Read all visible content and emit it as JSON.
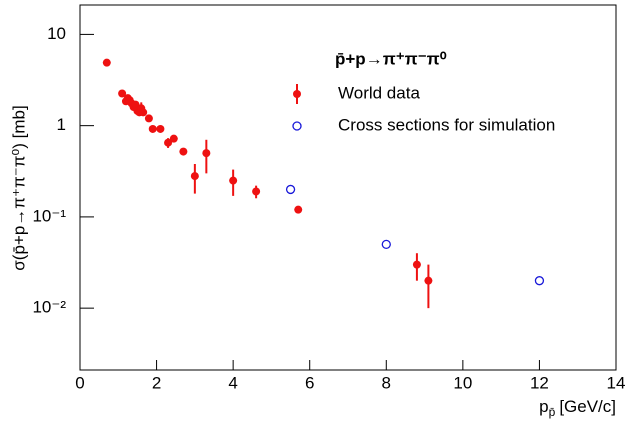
{
  "chart_data": {
    "type": "scatter",
    "title": "p̄+p→π⁺π⁻π⁰",
    "y_label": "σ(p̄+p→π⁺π⁻π⁰) [mb]",
    "x_label": "p",
    "x_label_sub": "p̄",
    "x_label_unit": "[GeV/c]",
    "log_y": true,
    "xlim": [
      0,
      14
    ],
    "xticks": [
      0,
      2,
      4,
      6,
      8,
      10,
      12,
      14
    ],
    "ylim": [
      0.0021,
      21
    ],
    "yticks": [
      {
        "value": 0.01,
        "label": "10⁻²"
      },
      {
        "value": 0.1,
        "label": "10⁻¹"
      },
      1,
      10
    ],
    "series": [
      {
        "name": "World data",
        "color": "#ee1111",
        "marker": "filled",
        "x": [
          0.7,
          1.1,
          1.2,
          1.25,
          1.3,
          1.35,
          1.4,
          1.45,
          1.5,
          1.55,
          1.6,
          1.65,
          1.8,
          1.9,
          2.1,
          2.3,
          2.45,
          2.7,
          3.0,
          3.3,
          4.0,
          4.6,
          5.7,
          8.8,
          9.1
        ],
        "values": [
          4.9,
          2.25,
          1.85,
          2.0,
          1.9,
          1.75,
          1.6,
          1.7,
          1.45,
          1.4,
          1.55,
          1.4,
          1.2,
          0.92,
          0.92,
          0.65,
          0.72,
          0.52,
          0.28,
          0.5,
          0.25,
          0.19,
          0.12,
          0.03,
          0.02
        ],
        "errors": [
          null,
          0.15,
          null,
          0.15,
          null,
          0.15,
          null,
          0.15,
          null,
          null,
          0.25,
          null,
          0.1,
          null,
          null,
          0.08,
          null,
          null,
          0.1,
          0.2,
          0.08,
          0.03,
          null,
          0.01,
          0.01
        ]
      },
      {
        "name": "Cross sections for simulation",
        "color": "#1a1ad9",
        "marker": "open",
        "x": [
          5.5,
          8,
          12
        ],
        "values": [
          0.2,
          0.05,
          0.02
        ]
      }
    ]
  }
}
